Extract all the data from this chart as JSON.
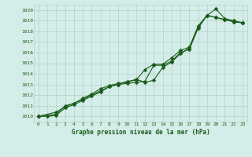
{
  "title": "Graphe pression niveau de la mer (hPa)",
  "background_color": "#d4ede8",
  "grid_color": "#b8cfc8",
  "line_color": "#1a5c1a",
  "xlim": [
    -0.5,
    23.5
  ],
  "ylim": [
    1009.5,
    1020.5
  ],
  "xticks": [
    0,
    1,
    2,
    3,
    4,
    5,
    6,
    7,
    8,
    9,
    10,
    11,
    12,
    13,
    14,
    15,
    16,
    17,
    18,
    19,
    20,
    21,
    22,
    23
  ],
  "yticks": [
    1010,
    1011,
    1012,
    1013,
    1014,
    1015,
    1016,
    1017,
    1018,
    1019,
    1020
  ],
  "series": [
    {
      "x": [
        0,
        1,
        2,
        3,
        4,
        5,
        6,
        7,
        8,
        9,
        10,
        11,
        12,
        13,
        14,
        15,
        16,
        17,
        18,
        19,
        20,
        21,
        22,
        23
      ],
      "y": [
        1010.0,
        1010.0,
        1010.1,
        1010.8,
        1011.1,
        1011.5,
        1011.9,
        1012.3,
        1012.8,
        1013.0,
        1013.1,
        1013.2,
        1013.3,
        1014.8,
        1014.8,
        1015.2,
        1016.0,
        1016.3,
        1018.3,
        1019.5,
        1019.3,
        1019.1,
        1018.9,
        1018.8
      ],
      "marker": "D",
      "markersize": 2.5
    },
    {
      "x": [
        0,
        2,
        3,
        4,
        5,
        6,
        7,
        8,
        9,
        10,
        11,
        12,
        13,
        14,
        15,
        16,
        17,
        18,
        19,
        20,
        21,
        22,
        23
      ],
      "y": [
        1010.0,
        1010.2,
        1011.0,
        1011.2,
        1011.7,
        1012.1,
        1012.6,
        1012.9,
        1013.1,
        1013.2,
        1013.5,
        1013.2,
        1013.4,
        1014.6,
        1015.1,
        1015.9,
        1016.4,
        1018.4,
        1019.5,
        1020.1,
        1019.2,
        1019.0,
        1018.8
      ],
      "marker": "D",
      "markersize": 2.5
    },
    {
      "x": [
        0,
        2,
        3,
        5,
        6,
        7,
        8,
        9,
        10,
        11,
        12,
        13,
        14,
        15,
        16,
        17,
        18,
        19,
        20,
        21,
        22,
        23
      ],
      "y": [
        1010.0,
        1010.4,
        1010.9,
        1011.6,
        1012.0,
        1012.4,
        1012.8,
        1013.0,
        1013.3,
        1013.4,
        1014.4,
        1014.9,
        1014.9,
        1015.5,
        1016.2,
        1016.5,
        1018.5,
        1019.5,
        1019.3,
        1019.1,
        1018.9,
        1018.8
      ],
      "marker": "D",
      "markersize": 2.5
    }
  ]
}
